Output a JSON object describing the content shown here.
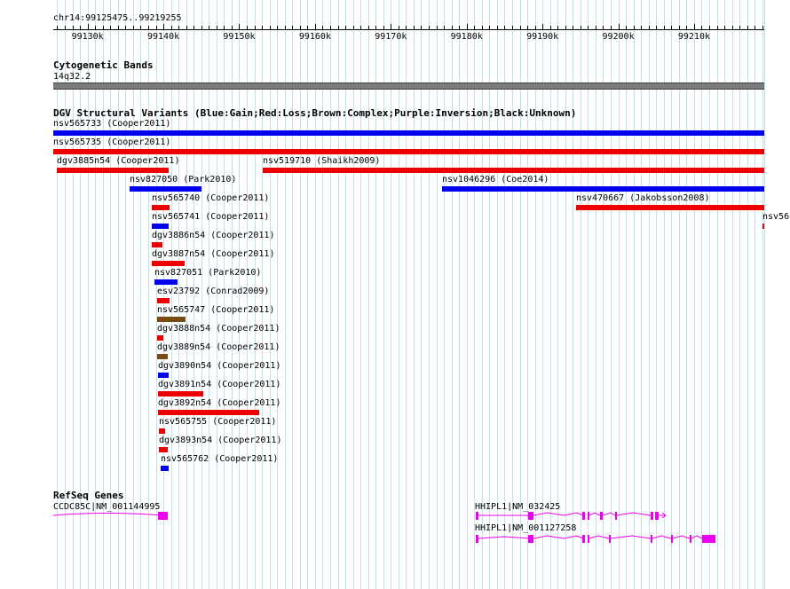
{
  "location": "chr14:99125475..99219255",
  "ruler": {
    "start": 99125475,
    "end": 99219255,
    "ticks": [
      "99130k",
      "99140k",
      "99150k",
      "99160k",
      "99170k",
      "99180k",
      "99190k",
      "99200k",
      "99210k"
    ]
  },
  "cytoband": {
    "title": "Cytogenetic Bands",
    "band": "14q32.2",
    "color": "#7a7a7a"
  },
  "dgv": {
    "title": "DGV Structural Variants (Blue:Gain;Red:Loss;Brown:Complex;Purple:Inversion;Black:Unknown)",
    "colors": {
      "gain": "#0000ee",
      "loss": "#ee0000",
      "complex": "#7a4a14"
    },
    "features": [
      {
        "label": "nsv565733 (Cooper2011)",
        "start": 99125475,
        "end": 99219255,
        "type": "gain"
      },
      {
        "label": "nsv565735 (Cooper2011)",
        "start": 99125475,
        "end": 99219255,
        "type": "loss"
      },
      {
        "label": "dgv3885n54 (Cooper2011)",
        "start": 99125900,
        "end": 99140700,
        "type": "loss"
      },
      {
        "label": "nsv519710 (Shaikh2009)",
        "start": 99153100,
        "end": 99219255,
        "type": "loss"
      },
      {
        "label": "nsv827050 (Park2010)",
        "start": 99135600,
        "end": 99145100,
        "type": "gain"
      },
      {
        "label": "nsv1046296 (Coe2014)",
        "start": 99176700,
        "end": 99219255,
        "type": "gain"
      },
      {
        "label": "nsv565740 (Cooper2011)",
        "start": 99138500,
        "end": 99140800,
        "type": "loss"
      },
      {
        "label": "nsv470667 (Jakobsson2008)",
        "start": 99194400,
        "end": 99219255,
        "type": "loss"
      },
      {
        "label": "nsv565741 (Cooper2011)",
        "start": 99138500,
        "end": 99140700,
        "type": "gain"
      },
      {
        "label": "nsv56",
        "start": 99219050,
        "end": 99219255,
        "type": "loss"
      },
      {
        "label": "dgv3886n54 (Cooper2011)",
        "start": 99138500,
        "end": 99139900,
        "type": "loss"
      },
      {
        "label": "dgv3887n54 (Cooper2011)",
        "start": 99138500,
        "end": 99142800,
        "type": "loss"
      },
      {
        "label": "nsv827051 (Park2010)",
        "start": 99138800,
        "end": 99141800,
        "type": "gain"
      },
      {
        "label": "esv23792 (Conrad2009)",
        "start": 99139200,
        "end": 99140800,
        "type": "loss"
      },
      {
        "label": "nsv565747 (Cooper2011)",
        "start": 99139200,
        "end": 99143000,
        "type": "complex"
      },
      {
        "label": "dgv3888n54 (Cooper2011)",
        "start": 99139200,
        "end": 99140000,
        "type": "loss"
      },
      {
        "label": "dgv3889n54 (Cooper2011)",
        "start": 99139200,
        "end": 99140600,
        "type": "complex"
      },
      {
        "label": "dgv3890n54 (Cooper2011)",
        "start": 99139300,
        "end": 99140700,
        "type": "gain"
      },
      {
        "label": "dgv3891n54 (Cooper2011)",
        "start": 99139300,
        "end": 99145300,
        "type": "loss"
      },
      {
        "label": "dgv3892n54 (Cooper2011)",
        "start": 99139300,
        "end": 99152700,
        "type": "loss"
      },
      {
        "label": "nsv565755 (Cooper2011)",
        "start": 99139400,
        "end": 99140200,
        "type": "loss"
      },
      {
        "label": "dgv3893n54 (Cooper2011)",
        "start": 99139400,
        "end": 99140600,
        "type": "loss"
      },
      {
        "label": "nsv565762 (Cooper2011)",
        "start": 99139600,
        "end": 99140600,
        "type": "gain"
      }
    ]
  },
  "refseq": {
    "title": "RefSeq Genes",
    "color": "#ee00ee",
    "genes": [
      {
        "label": "CCDC85C|NM_001144995"
      },
      {
        "label": "HHIPL1|NM_032425"
      },
      {
        "label": "HHIPL1|NM_001127258"
      }
    ]
  }
}
